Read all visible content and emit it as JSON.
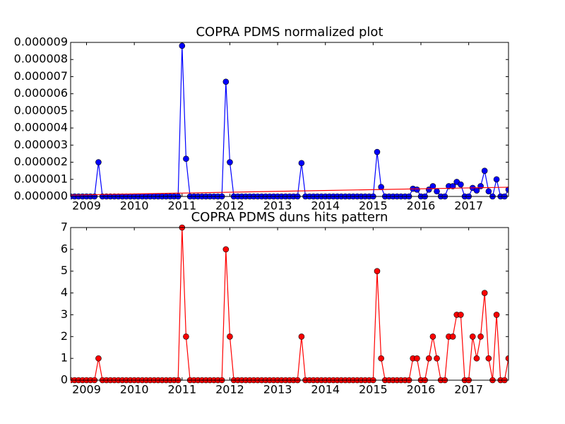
{
  "chart_data": [
    {
      "type": "line",
      "title": "COPRA PDMS normalized plot",
      "x": [
        2008.667,
        2008.75,
        2008.833,
        2008.917,
        2009,
        2009.083,
        2009.167,
        2009.25,
        2009.333,
        2009.417,
        2009.5,
        2009.583,
        2009.667,
        2009.75,
        2009.833,
        2009.917,
        2010,
        2010.083,
        2010.167,
        2010.25,
        2010.333,
        2010.417,
        2010.5,
        2010.583,
        2010.667,
        2010.75,
        2010.833,
        2010.917,
        2011,
        2011.083,
        2011.167,
        2011.25,
        2011.333,
        2011.417,
        2011.5,
        2011.583,
        2011.667,
        2011.75,
        2011.833,
        2011.917,
        2012,
        2012.083,
        2012.167,
        2012.25,
        2012.333,
        2012.417,
        2012.5,
        2012.583,
        2012.667,
        2012.75,
        2012.833,
        2012.917,
        2013,
        2013.083,
        2013.167,
        2013.25,
        2013.333,
        2013.417,
        2013.5,
        2013.583,
        2013.667,
        2013.75,
        2013.833,
        2013.917,
        2014,
        2014.083,
        2014.167,
        2014.25,
        2014.333,
        2014.417,
        2014.5,
        2014.583,
        2014.667,
        2014.75,
        2014.833,
        2014.917,
        2015,
        2015.083,
        2015.167,
        2015.25,
        2015.333,
        2015.417,
        2015.5,
        2015.583,
        2015.667,
        2015.75,
        2015.833,
        2015.917,
        2016,
        2016.083,
        2016.167,
        2016.25,
        2016.333,
        2016.417,
        2016.5,
        2016.583,
        2016.667,
        2016.75,
        2016.833,
        2016.917,
        2017,
        2017.083,
        2017.167,
        2017.25,
        2017.333,
        2017.417,
        2017.5,
        2017.583,
        2017.667,
        2017.75,
        2017.833
      ],
      "series": [
        {
          "color": "#0000ff",
          "marker": "o",
          "values": [
            0,
            0,
            0,
            0,
            0,
            0,
            0,
            2e-06,
            0,
            0,
            0,
            0,
            0,
            0,
            0,
            0,
            0,
            0,
            0,
            0,
            0,
            0,
            0,
            0,
            0,
            0,
            0,
            0,
            8.8e-06,
            2.2e-06,
            0,
            0,
            0,
            0,
            0,
            0,
            0,
            0,
            0,
            6.7e-06,
            2e-06,
            0,
            0,
            0,
            0,
            0,
            0,
            0,
            0,
            0,
            0,
            0,
            0,
            0,
            0,
            0,
            0,
            0,
            1.95e-06,
            0,
            0,
            0,
            0,
            0,
            0,
            0,
            0,
            0,
            0,
            0,
            0,
            0,
            0,
            0,
            0,
            0,
            0,
            2.6e-06,
            5.5e-07,
            0,
            0,
            0,
            0,
            0,
            0,
            0,
            4.5e-07,
            4e-07,
            0,
            0,
            4e-07,
            6e-07,
            3e-07,
            0,
            0,
            6e-07,
            6e-07,
            8.5e-07,
            7e-07,
            0,
            0,
            5e-07,
            3.5e-07,
            6e-07,
            1.5e-06,
            3e-07,
            0,
            1e-06,
            0,
            0,
            4e-07
          ]
        },
        {
          "color": "#ff0000",
          "marker": "none",
          "x": [
            2008.667,
            2017.833
          ],
          "values": [
            8e-08,
            5.4e-07
          ]
        }
      ],
      "xlim": [
        2008.667,
        2017.833
      ],
      "xticks": [
        2009,
        2010,
        2011,
        2012,
        2013,
        2014,
        2015,
        2016,
        2017
      ],
      "ylim": [
        0,
        9e-06
      ],
      "yticks": [
        {
          "value": 0,
          "label": "0.000000"
        },
        {
          "value": 1e-06,
          "label": "0.000001"
        },
        {
          "value": 2e-06,
          "label": "0.000002"
        },
        {
          "value": 3e-06,
          "label": "0.000003"
        },
        {
          "value": 4e-06,
          "label": "0.000004"
        },
        {
          "value": 5e-06,
          "label": "0.000005"
        },
        {
          "value": 6e-06,
          "label": "0.000006"
        },
        {
          "value": 7e-06,
          "label": "0.000007"
        },
        {
          "value": 8e-06,
          "label": "0.000008"
        },
        {
          "value": 9e-06,
          "label": "0.000009"
        }
      ]
    },
    {
      "type": "line",
      "title": "COPRA PDMS duns hits pattern",
      "x": [
        2008.667,
        2008.75,
        2008.833,
        2008.917,
        2009,
        2009.083,
        2009.167,
        2009.25,
        2009.333,
        2009.417,
        2009.5,
        2009.583,
        2009.667,
        2009.75,
        2009.833,
        2009.917,
        2010,
        2010.083,
        2010.167,
        2010.25,
        2010.333,
        2010.417,
        2010.5,
        2010.583,
        2010.667,
        2010.75,
        2010.833,
        2010.917,
        2011,
        2011.083,
        2011.167,
        2011.25,
        2011.333,
        2011.417,
        2011.5,
        2011.583,
        2011.667,
        2011.75,
        2011.833,
        2011.917,
        2012,
        2012.083,
        2012.167,
        2012.25,
        2012.333,
        2012.417,
        2012.5,
        2012.583,
        2012.667,
        2012.75,
        2012.833,
        2012.917,
        2013,
        2013.083,
        2013.167,
        2013.25,
        2013.333,
        2013.417,
        2013.5,
        2013.583,
        2013.667,
        2013.75,
        2013.833,
        2013.917,
        2014,
        2014.083,
        2014.167,
        2014.25,
        2014.333,
        2014.417,
        2014.5,
        2014.583,
        2014.667,
        2014.75,
        2014.833,
        2014.917,
        2015,
        2015.083,
        2015.167,
        2015.25,
        2015.333,
        2015.417,
        2015.5,
        2015.583,
        2015.667,
        2015.75,
        2015.833,
        2015.917,
        2016,
        2016.083,
        2016.167,
        2016.25,
        2016.333,
        2016.417,
        2016.5,
        2016.583,
        2016.667,
        2016.75,
        2016.833,
        2016.917,
        2017,
        2017.083,
        2017.167,
        2017.25,
        2017.333,
        2017.417,
        2017.5,
        2017.583,
        2017.667,
        2017.75,
        2017.833
      ],
      "series": [
        {
          "color": "#ff0000",
          "marker": "o",
          "values": [
            0,
            0,
            0,
            0,
            0,
            0,
            0,
            1,
            0,
            0,
            0,
            0,
            0,
            0,
            0,
            0,
            0,
            0,
            0,
            0,
            0,
            0,
            0,
            0,
            0,
            0,
            0,
            0,
            7,
            2,
            0,
            0,
            0,
            0,
            0,
            0,
            0,
            0,
            0,
            6,
            2,
            0,
            0,
            0,
            0,
            0,
            0,
            0,
            0,
            0,
            0,
            0,
            0,
            0,
            0,
            0,
            0,
            0,
            2,
            0,
            0,
            0,
            0,
            0,
            0,
            0,
            0,
            0,
            0,
            0,
            0,
            0,
            0,
            0,
            0,
            0,
            0,
            5,
            1,
            0,
            0,
            0,
            0,
            0,
            0,
            0,
            1,
            1,
            0,
            0,
            1,
            2,
            1,
            0,
            0,
            2,
            2,
            3,
            3,
            0,
            0,
            2,
            1,
            2,
            4,
            1,
            0,
            3,
            0,
            0,
            1
          ]
        }
      ],
      "xlim": [
        2008.667,
        2017.833
      ],
      "xticks": [
        2009,
        2010,
        2011,
        2012,
        2013,
        2014,
        2015,
        2016,
        2017
      ],
      "ylim": [
        0,
        7
      ],
      "yticks": [
        0,
        1,
        2,
        3,
        4,
        5,
        6,
        7
      ]
    }
  ]
}
